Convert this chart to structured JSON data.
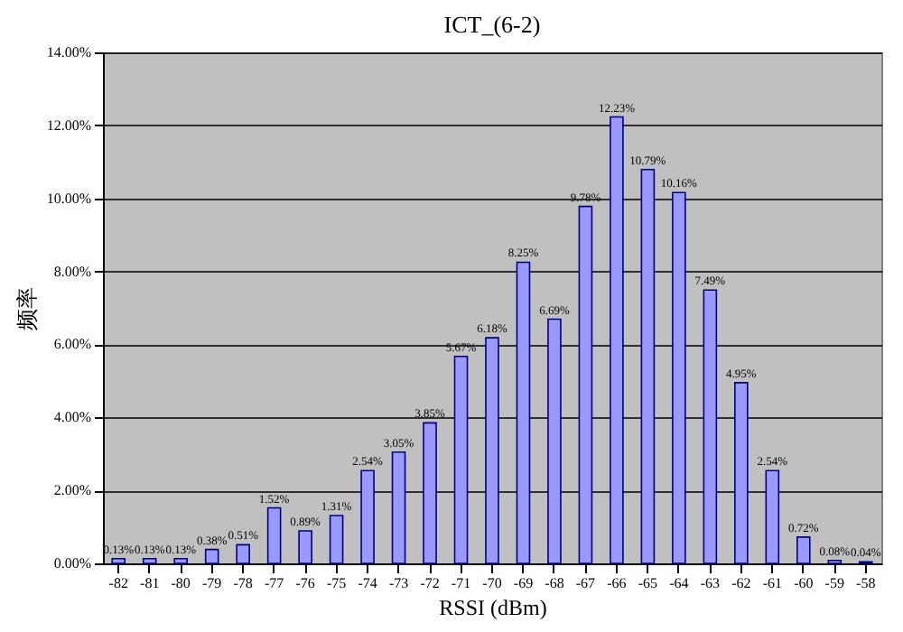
{
  "chart_data": {
    "type": "bar",
    "title": "ICT_(6-2)",
    "xlabel": "RSSI (dBm)",
    "ylabel": "频率",
    "categories": [
      "-82",
      "-81",
      "-80",
      "-79",
      "-78",
      "-77",
      "-76",
      "-75",
      "-74",
      "-73",
      "-72",
      "-71",
      "-70",
      "-69",
      "-68",
      "-67",
      "-66",
      "-65",
      "-64",
      "-63",
      "-62",
      "-61",
      "-60",
      "-59",
      "-58"
    ],
    "values": [
      0.13,
      0.13,
      0.13,
      0.38,
      0.51,
      1.52,
      0.89,
      1.31,
      2.54,
      3.05,
      3.85,
      5.67,
      6.18,
      8.25,
      6.69,
      9.78,
      12.23,
      10.79,
      10.16,
      7.49,
      4.95,
      2.54,
      0.72,
      0.08,
      0.04
    ],
    "value_labels": [
      "0.13%",
      "0.13%",
      "0.13%",
      "0.38%",
      "0.51%",
      "1.52%",
      "0.89%",
      "1.31%",
      "2.54%",
      "3.05%",
      "3.85%",
      "5.67%",
      "6.18%",
      "8.25%",
      "6.69%",
      "9.78%",
      "12.23%",
      "10.79%",
      "10.16%",
      "7.49%",
      "4.95%",
      "2.54%",
      "0.72%",
      "0.08%",
      "0.04%"
    ],
    "color": "#9999ff",
    "ylim": [
      0,
      14
    ],
    "yticks": [
      {
        "value": 0,
        "label": "0.00%"
      },
      {
        "value": 2,
        "label": "2.00%"
      },
      {
        "value": 4,
        "label": "4.00%"
      },
      {
        "value": 6,
        "label": "6.00%"
      },
      {
        "value": 8,
        "label": "8.00%"
      },
      {
        "value": 10,
        "label": "10.00%"
      },
      {
        "value": 12,
        "label": "12.00%"
      },
      {
        "value": 14,
        "label": "14.00%"
      }
    ],
    "grid": "y"
  }
}
